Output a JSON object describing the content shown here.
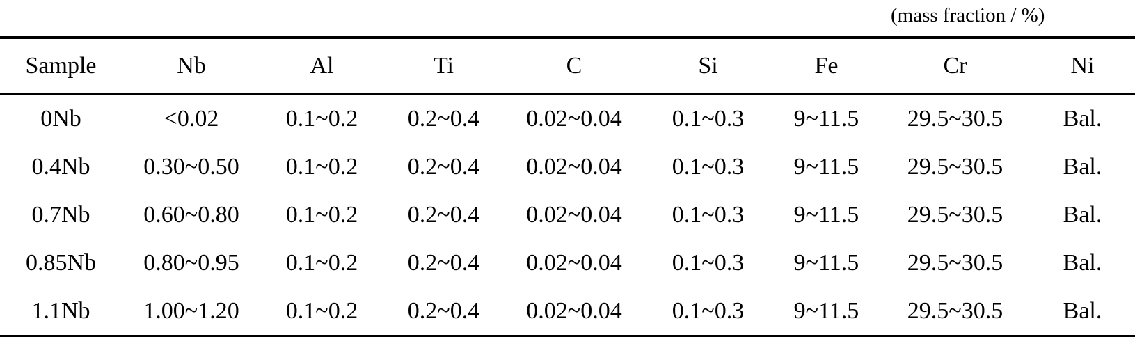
{
  "table": {
    "unit_note": "(mass fraction / %)",
    "headers": [
      "Sample",
      "Nb",
      "Al",
      "Ti",
      "C",
      "Si",
      "Fe",
      "Cr",
      "Ni"
    ],
    "rows": [
      [
        "0Nb",
        "<0.02",
        "0.1~0.2",
        "0.2~0.4",
        "0.02~0.04",
        "0.1~0.3",
        "9~11.5",
        "29.5~30.5",
        "Bal."
      ],
      [
        "0.4Nb",
        "0.30~0.50",
        "0.1~0.2",
        "0.2~0.4",
        "0.02~0.04",
        "0.1~0.3",
        "9~11.5",
        "29.5~30.5",
        "Bal."
      ],
      [
        "0.7Nb",
        "0.60~0.80",
        "0.1~0.2",
        "0.2~0.4",
        "0.02~0.04",
        "0.1~0.3",
        "9~11.5",
        "29.5~30.5",
        "Bal."
      ],
      [
        "0.85Nb",
        "0.80~0.95",
        "0.1~0.2",
        "0.2~0.4",
        "0.02~0.04",
        "0.1~0.3",
        "9~11.5",
        "29.5~30.5",
        "Bal."
      ],
      [
        "1.1Nb",
        "1.00~1.20",
        "0.1~0.2",
        "0.2~0.4",
        "0.02~0.04",
        "0.1~0.3",
        "9~11.5",
        "29.5~30.5",
        "Bal."
      ]
    ]
  }
}
